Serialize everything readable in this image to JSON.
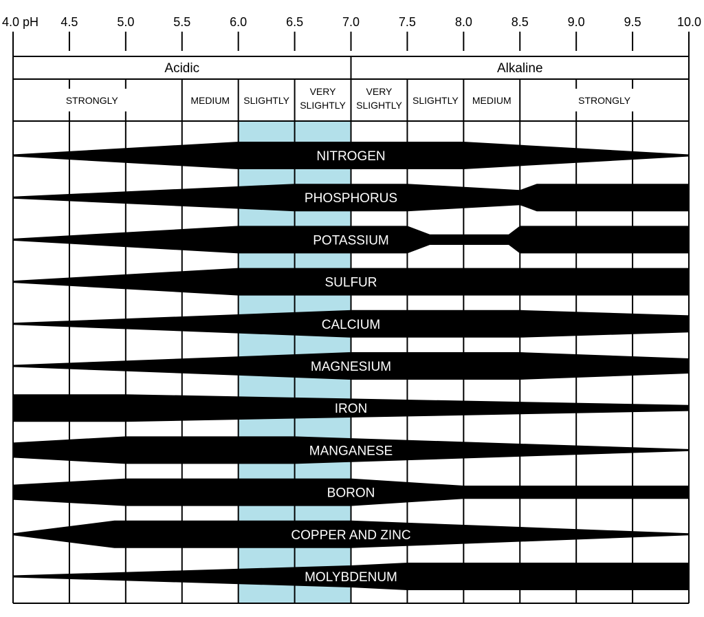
{
  "chart_data": {
    "type": "band-diagram",
    "ph_axis": {
      "ticks": [
        {
          "value": 4.0,
          "label": "4.0 pH"
        },
        {
          "value": 4.5,
          "label": "4.5"
        },
        {
          "value": 5.0,
          "label": "5.0"
        },
        {
          "value": 5.5,
          "label": "5.5"
        },
        {
          "value": 6.0,
          "label": "6.0"
        },
        {
          "value": 6.5,
          "label": "6.5"
        },
        {
          "value": 7.0,
          "label": "7.0"
        },
        {
          "value": 7.5,
          "label": "7.5"
        },
        {
          "value": 8.0,
          "label": "8.0"
        },
        {
          "value": 8.5,
          "label": "8.5"
        },
        {
          "value": 9.0,
          "label": "9.0"
        },
        {
          "value": 9.5,
          "label": "9.5"
        },
        {
          "value": 10.0,
          "label": "10.0"
        }
      ],
      "range": [
        4.0,
        10.0
      ]
    },
    "classes": [
      {
        "label": "Acidic",
        "from": 4.0,
        "to": 7.0
      },
      {
        "label": "Alkaline",
        "from": 7.0,
        "to": 10.0
      }
    ],
    "subclasses": [
      {
        "lines": [
          "STRONGLY"
        ],
        "from": 4.0,
        "to": 5.5,
        "center": 4.7
      },
      {
        "lines": [
          "MEDIUM"
        ],
        "from": 5.5,
        "to": 6.0,
        "center": 5.75
      },
      {
        "lines": [
          "SLIGHTLY"
        ],
        "from": 6.0,
        "to": 6.5,
        "center": 6.25
      },
      {
        "lines": [
          "VERY",
          "SLIGHTLY"
        ],
        "from": 6.5,
        "to": 7.0,
        "center": 6.75
      },
      {
        "lines": [
          "VERY",
          "SLIGHTLY"
        ],
        "from": 7.0,
        "to": 7.5,
        "center": 7.25
      },
      {
        "lines": [
          "SLIGHTLY"
        ],
        "from": 7.5,
        "to": 8.0,
        "center": 7.75
      },
      {
        "lines": [
          "MEDIUM"
        ],
        "from": 8.0,
        "to": 8.5,
        "center": 8.25
      },
      {
        "lines": [
          "STRONGLY"
        ],
        "from": 8.5,
        "to": 10.0,
        "center": 9.25
      }
    ],
    "optimal_range": {
      "from": 6.0,
      "to": 7.0,
      "color": "#b3e0ea"
    },
    "nutrients": [
      {
        "name": "NITROGEN",
        "profile": [
          [
            4.0,
            0.0
          ],
          [
            6.0,
            1.0
          ],
          [
            8.0,
            1.0
          ],
          [
            10.0,
            0.0
          ]
        ]
      },
      {
        "name": "PHOSPHORUS",
        "profile": [
          [
            4.0,
            0.0
          ],
          [
            6.5,
            1.0
          ],
          [
            7.5,
            1.0
          ],
          [
            8.5,
            0.55
          ],
          [
            8.65,
            1.0
          ],
          [
            10.0,
            1.0
          ]
        ]
      },
      {
        "name": "POTASSIUM",
        "profile": [
          [
            4.0,
            0.0
          ],
          [
            6.0,
            1.0
          ],
          [
            7.5,
            1.0
          ],
          [
            7.7,
            0.38
          ],
          [
            8.4,
            0.38
          ],
          [
            8.5,
            1.0
          ],
          [
            10.0,
            1.0
          ]
        ]
      },
      {
        "name": "SULFUR",
        "profile": [
          [
            4.0,
            0.0
          ],
          [
            6.0,
            1.0
          ],
          [
            10.0,
            1.0
          ]
        ]
      },
      {
        "name": "CALCIUM",
        "profile": [
          [
            4.0,
            0.0
          ],
          [
            7.0,
            1.0
          ],
          [
            8.5,
            1.0
          ],
          [
            10.0,
            0.62
          ]
        ]
      },
      {
        "name": "MAGNESIUM",
        "profile": [
          [
            4.0,
            0.0
          ],
          [
            7.0,
            1.0
          ],
          [
            8.5,
            1.0
          ],
          [
            10.0,
            0.55
          ]
        ]
      },
      {
        "name": "IRON",
        "profile": [
          [
            4.0,
            1.0
          ],
          [
            5.0,
            1.0
          ],
          [
            10.0,
            0.22
          ]
        ]
      },
      {
        "name": "MANGANESE",
        "profile": [
          [
            4.0,
            0.55
          ],
          [
            5.0,
            1.0
          ],
          [
            6.5,
            1.0
          ],
          [
            10.0,
            0.0
          ]
        ]
      },
      {
        "name": "BORON",
        "profile": [
          [
            4.0,
            0.55
          ],
          [
            5.0,
            1.0
          ],
          [
            7.0,
            1.0
          ],
          [
            8.0,
            0.48
          ],
          [
            10.0,
            0.48
          ]
        ]
      },
      {
        "name": "COPPER AND ZINC",
        "profile": [
          [
            4.0,
            0.0
          ],
          [
            4.9,
            1.0
          ],
          [
            7.0,
            1.0
          ],
          [
            10.0,
            0.0
          ]
        ]
      },
      {
        "name": "MOLYBDENUM",
        "profile": [
          [
            4.0,
            0.0
          ],
          [
            7.0,
            0.8
          ],
          [
            7.5,
            1.0
          ],
          [
            10.0,
            1.0
          ]
        ]
      }
    ]
  }
}
